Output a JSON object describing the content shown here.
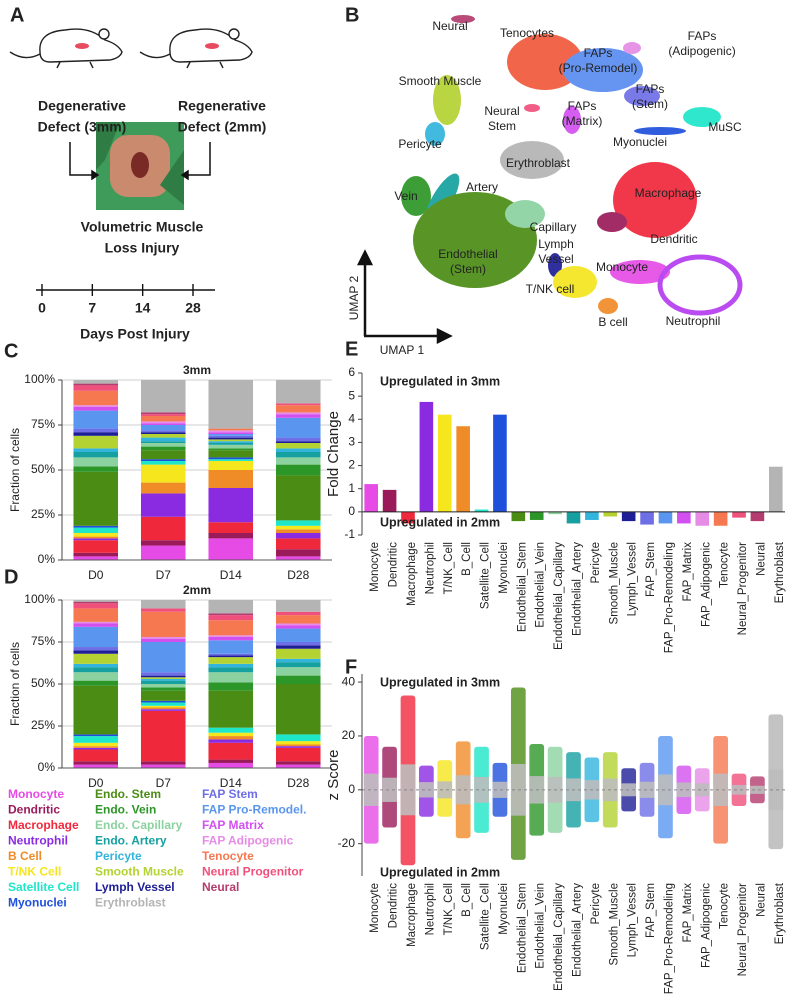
{
  "panel_labels": [
    "A",
    "B",
    "C",
    "D",
    "E",
    "F"
  ],
  "figure_a": {
    "left": [
      "Degenerative",
      "Defect (3mm)"
    ],
    "right": [
      "Regenerative",
      "Defect (2mm)"
    ],
    "injury": [
      "Volumetric Muscle",
      "Loss Injury"
    ],
    "timeline_ticks": [
      0,
      7,
      14,
      28
    ],
    "timeline_label": "Days Post Injury"
  },
  "umap": {
    "x_axis": "UMAP 1",
    "y_axis": "UMAP 2",
    "clusters": [
      {
        "label": [
          "Neural"
        ]
      },
      {
        "label": [
          "Tenocytes"
        ]
      },
      {
        "label": [
          "FAPs",
          "(Pro-Remodel)"
        ]
      },
      {
        "label": [
          "FAPs",
          "(Adipogenic)"
        ]
      },
      {
        "label": [
          "Smooth Muscle"
        ]
      },
      {
        "label": [
          "FAPs",
          "(Stem)"
        ]
      },
      {
        "label": [
          "Neural",
          "Stem"
        ]
      },
      {
        "label": [
          "FAPs",
          "(Matrix)"
        ]
      },
      {
        "label": [
          "MuSC"
        ]
      },
      {
        "label": [
          "Myonuclei"
        ]
      },
      {
        "label": [
          "Pericyte"
        ]
      },
      {
        "label": [
          "Erythroblast"
        ]
      },
      {
        "label": [
          "Macrophage"
        ]
      },
      {
        "label": [
          "Vein"
        ]
      },
      {
        "label": [
          "Artery"
        ]
      },
      {
        "label": [
          "Capillary"
        ]
      },
      {
        "label": [
          "Lymph",
          "Vessel"
        ]
      },
      {
        "label": [
          "Endothelial",
          "(Stem)"
        ]
      },
      {
        "label": [
          "Dendritic"
        ]
      },
      {
        "label": [
          "Monocyte"
        ]
      },
      {
        "label": [
          "T/NK cell"
        ]
      },
      {
        "label": [
          "B cell"
        ]
      },
      {
        "label": [
          "Neutrophil"
        ]
      }
    ]
  },
  "chart_data": [
    {
      "type": "stacked_bar",
      "title": "3mm",
      "y_label": "Fraction of cells",
      "categories": [
        "D0",
        "D7",
        "D14",
        "D28"
      ],
      "ylim": [
        0,
        100
      ],
      "yticks": [
        {
          "value": 0,
          "label": "0%"
        },
        {
          "value": 25,
          "label": "25%"
        },
        {
          "value": 50,
          "label": "50%"
        },
        {
          "value": 75,
          "label": "75%"
        },
        {
          "value": 100,
          "label": "100%"
        }
      ],
      "grid": true,
      "series": [
        {
          "name": "Monocyte",
          "color": "#e64be6",
          "values": [
            2,
            8,
            12,
            2
          ]
        },
        {
          "name": "Dendritic",
          "color": "#9b1b5a",
          "values": [
            2,
            3,
            3,
            4
          ]
        },
        {
          "name": "Macrophage",
          "color": "#f0283c",
          "values": [
            7,
            13,
            6,
            6
          ]
        },
        {
          "name": "Neutrophil",
          "color": "#8a2be2",
          "values": [
            1,
            13,
            19,
            3
          ]
        },
        {
          "name": "B Cell",
          "color": "#f08c28",
          "values": [
            1,
            6,
            10,
            2
          ]
        },
        {
          "name": "T/NK Cell",
          "color": "#f5e61e",
          "values": [
            2,
            10,
            5,
            2
          ]
        },
        {
          "name": "Satellite Cell",
          "color": "#1ee6c8",
          "values": [
            3,
            2,
            1,
            3
          ]
        },
        {
          "name": "Myonuclei",
          "color": "#1e50dc",
          "values": [
            1,
            1,
            1,
            0
          ]
        },
        {
          "name": "Endo. Stem",
          "color": "#4b8c14",
          "values": [
            30,
            5,
            4,
            25
          ]
        },
        {
          "name": "Endo. Vein",
          "color": "#2d9628",
          "values": [
            3,
            2,
            1,
            6
          ]
        },
        {
          "name": "Endo. Capillary",
          "color": "#8cd2a0",
          "values": [
            5,
            2,
            2,
            4
          ]
        },
        {
          "name": "Endo. Artery",
          "color": "#16a0a0",
          "values": [
            3,
            1,
            1,
            3
          ]
        },
        {
          "name": "Pericyte",
          "color": "#32b4dc",
          "values": [
            2,
            2,
            1,
            2
          ]
        },
        {
          "name": "Smooth Muscle",
          "color": "#b4d232",
          "values": [
            7,
            2,
            1,
            3
          ]
        },
        {
          "name": "Lymph Vessel",
          "color": "#1e1e96",
          "values": [
            2,
            1,
            1,
            1
          ]
        },
        {
          "name": "FAP Stem",
          "color": "#6e6ee6",
          "values": [
            2,
            1,
            1,
            2
          ]
        },
        {
          "name": "FAP Pro-Remodel.",
          "color": "#5a96f0",
          "values": [
            10,
            3,
            1,
            11
          ]
        },
        {
          "name": "FAP Matrix",
          "color": "#d250f0",
          "values": [
            2,
            1,
            1,
            2
          ]
        },
        {
          "name": "FAP Adipogenic",
          "color": "#e68ce6",
          "values": [
            1,
            1,
            1,
            1
          ]
        },
        {
          "name": "Tenocyte",
          "color": "#f57850",
          "values": [
            8,
            3,
            1,
            4
          ]
        },
        {
          "name": "Neural Progenitor",
          "color": "#f0507c",
          "values": [
            3,
            1,
            0,
            1
          ]
        },
        {
          "name": "Neural",
          "color": "#b43c6e",
          "values": [
            1,
            1,
            0,
            0
          ]
        },
        {
          "name": "Erythroblast",
          "color": "#b4b4b4",
          "values": [
            2,
            18,
            27,
            13
          ]
        }
      ]
    },
    {
      "type": "stacked_bar",
      "title": "2mm",
      "y_label": "Fraction of cells",
      "categories": [
        "D0",
        "D7",
        "D14",
        "D28"
      ],
      "ylim": [
        0,
        100
      ],
      "yticks": [
        {
          "value": 0,
          "label": "0%"
        },
        {
          "value": 25,
          "label": "25%"
        },
        {
          "value": 50,
          "label": "50%"
        },
        {
          "value": 75,
          "label": "75%"
        },
        {
          "value": 100,
          "label": "100%"
        }
      ],
      "grid": true,
      "series": [
        {
          "color": "#e64be6",
          "values": [
            2,
            2,
            3,
            2
          ]
        },
        {
          "color": "#9b1b5a",
          "values": [
            2,
            2,
            2,
            2
          ]
        },
        {
          "color": "#f0283c",
          "values": [
            7,
            30,
            10,
            8
          ]
        },
        {
          "color": "#8a2be2",
          "values": [
            1,
            1,
            2,
            1
          ]
        },
        {
          "color": "#f08c28",
          "values": [
            1,
            1,
            2,
            1
          ]
        },
        {
          "color": "#f5e61e",
          "values": [
            2,
            1,
            2,
            2
          ]
        },
        {
          "color": "#1ee6c8",
          "values": [
            4,
            2,
            3,
            4
          ]
        },
        {
          "color": "#1e50dc",
          "values": [
            1,
            1,
            0,
            0
          ]
        },
        {
          "color": "#4b8c14",
          "values": [
            29,
            6,
            22,
            30
          ]
        },
        {
          "color": "#2d9628",
          "values": [
            3,
            2,
            5,
            5
          ]
        },
        {
          "color": "#8cd2a0",
          "values": [
            5,
            2,
            6,
            5
          ]
        },
        {
          "color": "#16a0a0",
          "values": [
            3,
            2,
            3,
            3
          ]
        },
        {
          "color": "#32b4dc",
          "values": [
            2,
            1,
            2,
            2
          ]
        },
        {
          "color": "#b4d232",
          "values": [
            6,
            1,
            4,
            6
          ]
        },
        {
          "color": "#1e1e96",
          "values": [
            2,
            1,
            1,
            2
          ]
        },
        {
          "color": "#6e6ee6",
          "values": [
            2,
            2,
            1,
            2
          ]
        },
        {
          "color": "#5a96f0",
          "values": [
            12,
            18,
            8,
            8
          ]
        },
        {
          "color": "#d250f0",
          "values": [
            2,
            2,
            2,
            2
          ]
        },
        {
          "color": "#e68ce6",
          "values": [
            1,
            1,
            1,
            1
          ]
        },
        {
          "color": "#f57850",
          "values": [
            8,
            15,
            9,
            5
          ]
        },
        {
          "color": "#f0507c",
          "values": [
            3,
            2,
            3,
            2
          ]
        },
        {
          "color": "#b43c6e",
          "values": [
            1,
            0,
            1,
            0
          ]
        },
        {
          "color": "#b4b4b4",
          "values": [
            1,
            5,
            8,
            7
          ]
        }
      ]
    },
    {
      "type": "bar",
      "y_label": "Fold Change",
      "annotations": [
        "Upregulated in 3mm",
        "Upregulated in 2mm"
      ],
      "categories": [
        "Monocyte",
        "Dendritic",
        "Macrophage",
        "Neutrophil",
        "T/NK_Cell",
        "B_Cell",
        "Satellite_Cell",
        "Myonuclei",
        "Endothelial_Stem",
        "Endothelial_Vein",
        "Endothelial_Capillary",
        "Endothelial_Artery",
        "Pericyte",
        "Smooth_Muscle",
        "Lymph_Vessel",
        "FAP_Stem",
        "FAP_Pro-Remodeling",
        "FAP_Matrix",
        "FAP_Adipogenic",
        "Tenocyte",
        "Neural_Progenitor",
        "Neural",
        "Erythroblast"
      ],
      "values": [
        1.2,
        0.95,
        -0.5,
        4.75,
        4.2,
        3.7,
        0.1,
        4.2,
        -0.4,
        -0.35,
        -0.1,
        -0.5,
        -0.35,
        -0.2,
        -0.4,
        -0.55,
        -0.5,
        -0.5,
        -0.6,
        -0.6,
        -0.25,
        -0.4,
        1.95
      ],
      "colors": [
        "#e64be6",
        "#9b1b5a",
        "#f0283c",
        "#8a2be2",
        "#f5e61e",
        "#f08c28",
        "#1ee6c8",
        "#1e50dc",
        "#4b8c14",
        "#2d9628",
        "#8cd2a0",
        "#16a0a0",
        "#32b4dc",
        "#b4d232",
        "#1e1e96",
        "#6e6ee6",
        "#5a96f0",
        "#d250f0",
        "#e68ce6",
        "#f57850",
        "#f0507c",
        "#b43c6e",
        "#b4b4b4"
      ],
      "ylim": [
        -1,
        6
      ],
      "yticks": [
        -1,
        0,
        1,
        2,
        3,
        4,
        5,
        6
      ]
    },
    {
      "type": "strip",
      "y_label": "z Score",
      "annotations": [
        "Upregulated in 3mm",
        "Upregulated in 2mm"
      ],
      "categories": [
        "Monocyte",
        "Dendritic",
        "Macrophage",
        "Neutrophil",
        "T/NK_Cell",
        "B_Cell",
        "Satellite_Cell",
        "Myonuclei",
        "Endothelial_Stem",
        "Endothelial_Vein",
        "Endothelial_Capillary",
        "Endothelial_Artery",
        "Pericyte",
        "Smooth_Muscle",
        "Lymph_Vessel",
        "FAP_Stem",
        "FAP_Pro-Remodeling",
        "FAP_Matrix",
        "FAP_Adipogenic",
        "Tenocyte",
        "Neural_Progenitor",
        "Neural",
        "Erythroblast"
      ],
      "low": [
        -20,
        -14,
        -28,
        -10,
        -10,
        -18,
        -16,
        -10,
        -26,
        -17,
        -16,
        -14,
        -12,
        -14,
        -8,
        -10,
        -18,
        -9,
        -8,
        -20,
        -6,
        -5,
        -22
      ],
      "high": [
        20,
        16,
        35,
        9,
        11,
        18,
        16,
        10,
        38,
        17,
        16,
        14,
        12,
        14,
        8,
        10,
        20,
        9,
        8,
        20,
        6,
        5,
        28
      ],
      "colors": [
        "#e64be6",
        "#9b1b5a",
        "#f0283c",
        "#8a2be2",
        "#f5e61e",
        "#f08c28",
        "#1ee6c8",
        "#1e50dc",
        "#4b8c14",
        "#2d9628",
        "#8cd2a0",
        "#16a0a0",
        "#32b4dc",
        "#b4d232",
        "#1e1e96",
        "#6e6ee6",
        "#5a96f0",
        "#d250f0",
        "#e68ce6",
        "#f57850",
        "#f0507c",
        "#b43c6e",
        "#b4b4b4"
      ],
      "ylim": [
        -32,
        43
      ],
      "yticks": [
        -20,
        0,
        20,
        40
      ]
    }
  ]
}
